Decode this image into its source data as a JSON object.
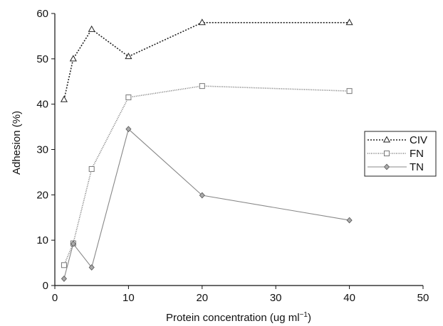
{
  "chart_data": {
    "type": "line",
    "xlabel": "Protein concentration (ug ml",
    "xlabel_sup": "−1",
    "xlabel_close": ")",
    "ylabel": "Adhesion (%)",
    "xlim": [
      0,
      50
    ],
    "ylim": [
      0,
      60
    ],
    "xticks": [
      0,
      10,
      20,
      30,
      40,
      50
    ],
    "yticks": [
      0,
      10,
      20,
      30,
      40,
      50,
      60
    ],
    "grid": false,
    "legend_position": "right",
    "series": [
      {
        "name": "CIV",
        "marker": "triangle",
        "dash": "dotted",
        "color": "#222222",
        "x": [
          1.25,
          2.5,
          5,
          10,
          20,
          40
        ],
        "y": [
          41,
          50,
          56.5,
          50.5,
          58,
          58
        ]
      },
      {
        "name": "FN",
        "marker": "square",
        "dash": "fine-dotted",
        "color": "#777777",
        "x": [
          1.25,
          2.5,
          5,
          10,
          20,
          40
        ],
        "y": [
          4.5,
          9.3,
          25.7,
          41.5,
          44,
          42.9
        ]
      },
      {
        "name": "TN",
        "marker": "diamond",
        "dash": "solid",
        "color": "#888888",
        "x": [
          1.25,
          2.5,
          5,
          10,
          20,
          40
        ],
        "y": [
          1.5,
          9.2,
          4,
          34.5,
          19.9,
          14.4
        ]
      }
    ]
  }
}
